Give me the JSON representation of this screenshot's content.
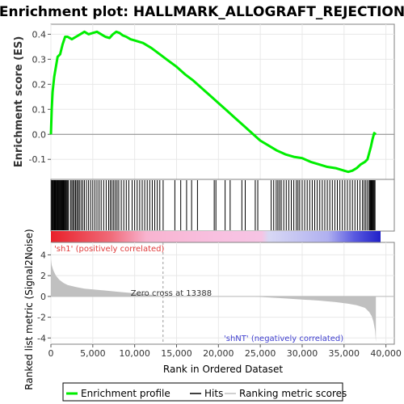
{
  "chart_data": {
    "type": "line",
    "title": "Enrichment plot: HALLMARK_ALLOGRAFT_REJECTION",
    "colors": {
      "es_line": "#00ee00",
      "hits": "#000000",
      "metric_fill": "#c0c0c0",
      "zero_line": "#999999",
      "pos_label": "#e03a3a",
      "neg_label": "#4040d0",
      "grid": "#e8e8e8"
    },
    "top_panel": {
      "ylabel": "Enrichment score (ES)",
      "ylim": [
        -0.18,
        0.44
      ],
      "yticks": [
        -0.1,
        0.0,
        0.1,
        0.2,
        0.3,
        0.4
      ],
      "ytick_labels": [
        "-0.1",
        "0.0",
        "0.1",
        "0.2",
        "0.3",
        "0.4"
      ],
      "xlim": [
        0,
        41000
      ],
      "series": [
        {
          "x": [
            0,
            100,
            200,
            400,
            600,
            800,
            1100,
            1400,
            1700,
            2000,
            2500,
            3000,
            3500,
            4000,
            4500,
            5000,
            5500,
            6000,
            6500,
            7000,
            7400,
            7800,
            8200,
            8600,
            9000,
            9500,
            10000,
            11000,
            12000,
            13000,
            14000,
            15000,
            16000,
            17000,
            18000,
            19000,
            20000,
            21000,
            22000,
            23000,
            24000,
            25000,
            26000,
            27000,
            28000,
            29000,
            30000,
            31000,
            32000,
            33000,
            34000,
            35000,
            35500,
            36000,
            36500,
            37000,
            37500,
            37800,
            38000,
            38200,
            38400,
            38600,
            38800
          ],
          "y": [
            0.0,
            0.1,
            0.17,
            0.23,
            0.27,
            0.31,
            0.32,
            0.36,
            0.39,
            0.39,
            0.38,
            0.39,
            0.4,
            0.41,
            0.4,
            0.405,
            0.41,
            0.4,
            0.39,
            0.385,
            0.4,
            0.41,
            0.405,
            0.395,
            0.39,
            0.38,
            0.375,
            0.365,
            0.345,
            0.32,
            0.295,
            0.27,
            0.24,
            0.215,
            0.185,
            0.155,
            0.125,
            0.095,
            0.065,
            0.035,
            0.005,
            -0.025,
            -0.045,
            -0.065,
            -0.08,
            -0.09,
            -0.095,
            -0.11,
            -0.12,
            -0.13,
            -0.135,
            -0.145,
            -0.15,
            -0.145,
            -0.135,
            -0.12,
            -0.11,
            -0.1,
            -0.075,
            -0.05,
            -0.02,
            0.005,
            0.0
          ]
        }
      ]
    },
    "hits": {
      "positions": [
        80,
        150,
        230,
        320,
        400,
        470,
        540,
        620,
        700,
        790,
        860,
        950,
        1030,
        1120,
        1200,
        1280,
        1360,
        1450,
        1530,
        1620,
        1700,
        1800,
        1900,
        2000,
        2100,
        2350,
        2500,
        2650,
        2800,
        2950,
        3100,
        3250,
        3400,
        3600,
        3800,
        4000,
        4250,
        4500,
        4750,
        5000,
        5250,
        5500,
        5750,
        6000,
        6300,
        6600,
        6900,
        7100,
        7300,
        7500,
        7700,
        7900,
        8100,
        8400,
        8700,
        9000,
        9300,
        9700,
        10000,
        10300,
        10600,
        10900,
        11200,
        11500,
        11800,
        12100,
        12400,
        12700,
        13000,
        13400,
        14800,
        15500,
        16200,
        16800,
        17500,
        19500,
        19700,
        20800,
        21400,
        22800,
        23200,
        24400,
        24700,
        26300,
        26600,
        26900,
        27100,
        27300,
        27500,
        27800,
        28100,
        28400,
        28700,
        29000,
        29300,
        29500,
        29700,
        30000,
        30300,
        30600,
        30900,
        31200,
        31500,
        31800,
        32100,
        32400,
        32700,
        33000,
        33300,
        33600,
        33900,
        34200,
        34500,
        34800,
        35100,
        35400,
        35700,
        36000,
        36300,
        36600,
        36900,
        37200,
        37400,
        37600,
        37800,
        38000,
        38100,
        38200,
        38300,
        38400,
        38500,
        38600,
        38700
      ]
    },
    "bottom_panel": {
      "ylabel": "Ranked list metric (Signal2Noise)",
      "xlabel": "Rank in Ordered Dataset",
      "ylim": [
        -4.6,
        5.2
      ],
      "yticks": [
        -4,
        -2,
        0,
        2,
        4
      ],
      "ytick_labels": [
        "-4",
        "-2",
        "0",
        "2",
        "4"
      ],
      "xlim": [
        0,
        41000
      ],
      "xticks": [
        0,
        5000,
        10000,
        15000,
        20000,
        25000,
        30000,
        35000,
        40000
      ],
      "xtick_labels": [
        "0",
        "5,000",
        "10,000",
        "15,000",
        "20,000",
        "25,000",
        "30,000",
        "35,000",
        "40,000"
      ],
      "metric_x": [
        0,
        100,
        300,
        600,
        1000,
        1500,
        2000,
        3000,
        4000,
        6000,
        8000,
        10000,
        12000,
        13388,
        14000,
        16000,
        18000,
        20000,
        22000,
        24000,
        26000,
        28000,
        30000,
        32000,
        34000,
        35500,
        36500,
        37500,
        38000,
        38300,
        38500,
        38700,
        38800
      ],
      "metric_y": [
        3.6,
        3.0,
        2.5,
        2.0,
        1.6,
        1.3,
        1.1,
        0.9,
        0.75,
        0.6,
        0.45,
        0.3,
        0.15,
        0.0,
        0.0,
        0.0,
        0.0,
        0.0,
        0.0,
        0.0,
        -0.1,
        -0.2,
        -0.3,
        -0.4,
        -0.55,
        -0.7,
        -0.85,
        -1.1,
        -1.5,
        -1.9,
        -2.4,
        -3.3,
        -4.4
      ],
      "zero_cross": 13388,
      "zero_cross_label": "Zero cross at 13388",
      "pos_label": "'sh1' (positively correlated)",
      "neg_label": "'shNT' (negatively correlated)"
    },
    "legend": {
      "placement": "bottom",
      "entries": [
        {
          "label": "Enrichment profile",
          "color": "#00ee00"
        },
        {
          "label": "Hits",
          "color": "#000000"
        },
        {
          "label": "Ranking metric scores",
          "color": "#c0c0c0"
        }
      ]
    }
  }
}
